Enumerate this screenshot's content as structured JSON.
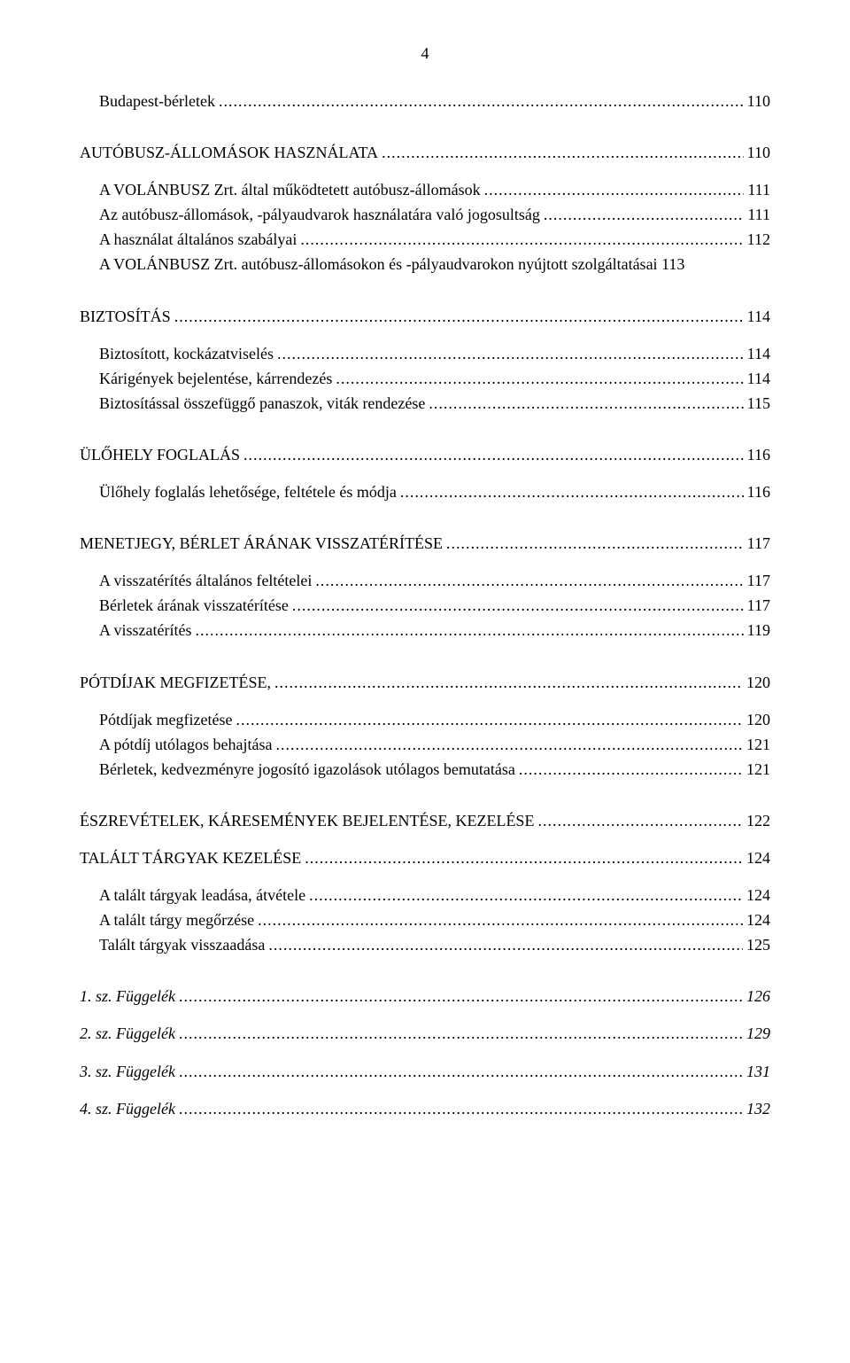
{
  "page_number_top": "4",
  "toc": [
    {
      "type": "entry",
      "indent": true,
      "label": "Budapest-bérletek",
      "page": "110"
    },
    {
      "type": "gap"
    },
    {
      "type": "entry",
      "indent": false,
      "label": "AUTÓBUSZ-ÁLLOMÁSOK HASZNÁLATA",
      "page": "110"
    },
    {
      "type": "smallgap"
    },
    {
      "type": "entry",
      "indent": true,
      "label": "A VOLÁNBUSZ Zrt. által működtetett autóbusz-állomások",
      "page": "111"
    },
    {
      "type": "entry",
      "indent": true,
      "label": "Az autóbusz-állomások, -pályaudvarok használatára való jogosultság",
      "page": "111"
    },
    {
      "type": "entry",
      "indent": true,
      "label": "A használat általános szabályai",
      "page": "112"
    },
    {
      "type": "entry",
      "indent": true,
      "label": "A VOLÁNBUSZ Zrt. autóbusz-állomásokon és -pályaudvarokon nyújtott szolgáltatásai",
      "page": "113",
      "nofill": true
    },
    {
      "type": "gap"
    },
    {
      "type": "entry",
      "indent": false,
      "label": "BIZTOSÍTÁS",
      "page": "114"
    },
    {
      "type": "smallgap"
    },
    {
      "type": "entry",
      "indent": true,
      "label": "Biztosított, kockázatviselés",
      "page": "114"
    },
    {
      "type": "entry",
      "indent": true,
      "label": "Kárigények bejelentése, kárrendezés",
      "page": "114"
    },
    {
      "type": "entry",
      "indent": true,
      "label": "Biztosítással összefüggő panaszok, viták rendezése",
      "page": "115"
    },
    {
      "type": "gap"
    },
    {
      "type": "entry",
      "indent": false,
      "label": "ÜLŐHELY FOGLALÁS",
      "page": "116"
    },
    {
      "type": "smallgap"
    },
    {
      "type": "entry",
      "indent": true,
      "label": "Ülőhely foglalás lehetősége, feltétele és módja",
      "page": "116"
    },
    {
      "type": "gap"
    },
    {
      "type": "entry",
      "indent": false,
      "label": "MENETJEGY, BÉRLET ÁRÁNAK VISSZATÉRÍTÉSE",
      "page": "117"
    },
    {
      "type": "smallgap"
    },
    {
      "type": "entry",
      "indent": true,
      "label": "A visszatérítés általános feltételei",
      "page": "117"
    },
    {
      "type": "entry",
      "indent": true,
      "label": "Bérletek árának visszatérítése",
      "page": "117"
    },
    {
      "type": "entry",
      "indent": true,
      "label": "A visszatérítés",
      "page": "119"
    },
    {
      "type": "gap"
    },
    {
      "type": "entry",
      "indent": false,
      "label": "PÓTDÍJAK MEGFIZETÉSE,",
      "page": "120"
    },
    {
      "type": "smallgap"
    },
    {
      "type": "entry",
      "indent": true,
      "label": "Pótdíjak megfizetése",
      "page": "120"
    },
    {
      "type": "entry",
      "indent": true,
      "label": "A pótdíj utólagos behajtása",
      "page": "121"
    },
    {
      "type": "entry",
      "indent": true,
      "label": "Bérletek, kedvezményre jogosító igazolások utólagos bemutatása",
      "page": "121"
    },
    {
      "type": "gap"
    },
    {
      "type": "entry",
      "indent": false,
      "label": "ÉSZREVÉTELEK, KÁRESEMÉNYEK BEJELENTÉSE, KEZELÉSE",
      "page": "122"
    },
    {
      "type": "smallgap"
    },
    {
      "type": "entry",
      "indent": false,
      "label": "TALÁLT TÁRGYAK KEZELÉSE",
      "page": "124"
    },
    {
      "type": "smallgap"
    },
    {
      "type": "entry",
      "indent": true,
      "label": "A talált tárgyak leadása, átvétele",
      "page": "124"
    },
    {
      "type": "entry",
      "indent": true,
      "label": "A talált tárgy megőrzése",
      "page": "124"
    },
    {
      "type": "entry",
      "indent": true,
      "label": "Talált tárgyak visszaadása",
      "page": "125"
    },
    {
      "type": "gap"
    },
    {
      "type": "entry",
      "indent": false,
      "italic": true,
      "label": "1. sz. Függelék",
      "page": "126"
    },
    {
      "type": "smallgap"
    },
    {
      "type": "entry",
      "indent": false,
      "italic": true,
      "label": "2. sz. Függelék",
      "page": "129"
    },
    {
      "type": "smallgap"
    },
    {
      "type": "entry",
      "indent": false,
      "italic": true,
      "label": "3. sz. Függelék",
      "page": "131"
    },
    {
      "type": "smallgap"
    },
    {
      "type": "entry",
      "indent": false,
      "italic": true,
      "label": "4. sz. Függelék",
      "page": "132"
    }
  ]
}
